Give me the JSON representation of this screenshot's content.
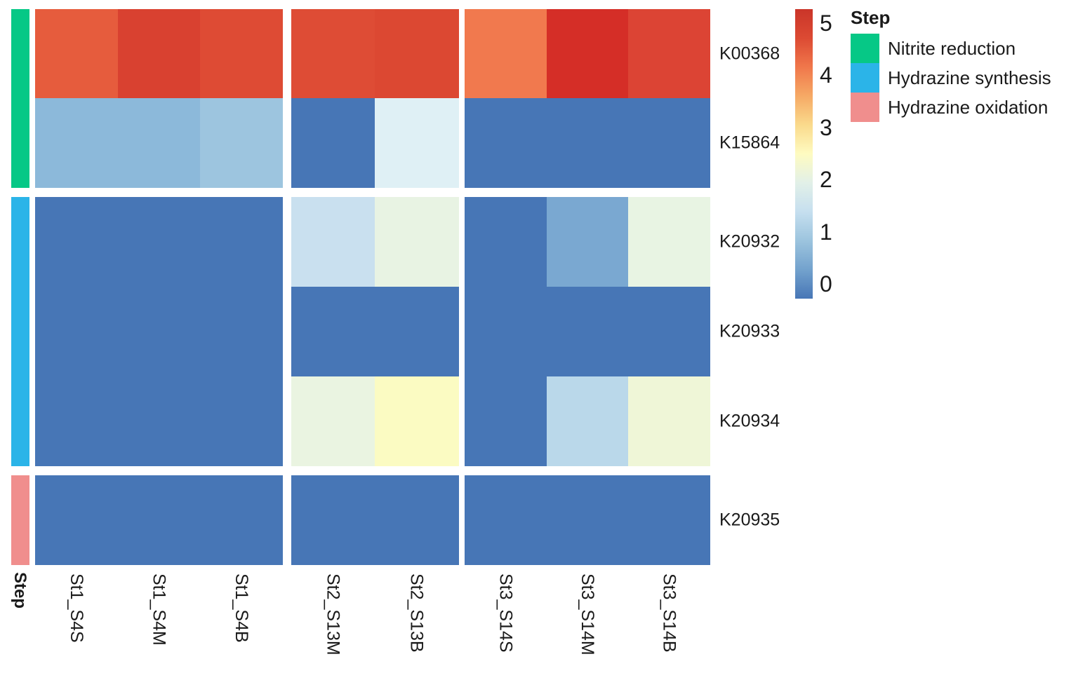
{
  "chart_data": {
    "type": "heatmap",
    "title": "",
    "rows": [
      "K00368",
      "K15864",
      "K20932",
      "K20933",
      "K20934",
      "K20935"
    ],
    "columns": [
      "St1_S4S",
      "St1_S4M",
      "St1_S4B",
      "St2_S13M",
      "St2_S13B",
      "St3_S14S",
      "St3_S14M",
      "St3_S14B"
    ],
    "column_groups": [
      {
        "name": "St1",
        "columns": [
          "St1_S4S",
          "St1_S4M",
          "St1_S4B"
        ]
      },
      {
        "name": "St2",
        "columns": [
          "St2_S13M",
          "St2_S13B"
        ]
      },
      {
        "name": "St3",
        "columns": [
          "St3_S14S",
          "St3_S14M",
          "St3_S14B"
        ]
      }
    ],
    "values": [
      [
        4.2,
        4.7,
        4.5,
        4.5,
        4.6,
        4.0,
        4.9,
        4.8
      ],
      [
        1.1,
        1.1,
        1.3,
        0,
        1.9,
        0,
        0,
        0
      ],
      [
        0,
        0,
        0,
        1.6,
        2.2,
        0,
        0.8,
        2.2
      ],
      [
        0,
        0,
        0,
        0,
        0,
        0,
        0,
        0
      ],
      [
        0,
        0,
        0,
        2.3,
        2.7,
        0,
        1.4,
        2.5
      ],
      [
        0,
        0,
        0,
        0,
        0,
        0,
        0,
        0
      ]
    ],
    "cell_colors": [
      [
        "#E65C3D",
        "#D94130",
        "#DE4B34",
        "#DE4C35",
        "#DC4832",
        "#F1794E",
        "#D52E27",
        "#DC4434"
      ],
      [
        "#8CB9DA",
        "#8CB9DA",
        "#9DC5DF",
        "#4776B6",
        "#DFF0F5",
        "#4776B6",
        "#4776B6",
        "#4776B6"
      ],
      [
        "#4776B6",
        "#4776B6",
        "#4776B6",
        "#C9E0EF",
        "#E8F3E3",
        "#4776B6",
        "#7AA8D1",
        "#E8F4E3"
      ],
      [
        "#4776B6",
        "#4776B6",
        "#4776B6",
        "#4776B6",
        "#4776B6",
        "#4776B6",
        "#4776B6",
        "#4776B6"
      ],
      [
        "#4776B6",
        "#4776B6",
        "#4776B6",
        "#EAF4E1",
        "#FBFBC2",
        "#4776B6",
        "#BAD8EA",
        "#EFF6D7"
      ],
      [
        "#4776B6",
        "#4776B6",
        "#4776B6",
        "#4776B6",
        "#4776B6",
        "#4776B6",
        "#4776B6",
        "#4776B6"
      ]
    ],
    "row_groups": [
      {
        "step": "Nitrite reduction",
        "color": "#06C886",
        "rows": [
          "K00368",
          "K15864"
        ]
      },
      {
        "step": "Hydrazine synthesis",
        "color": "#2BB4E8",
        "rows": [
          "K20932",
          "K20933",
          "K20934"
        ]
      },
      {
        "step": "Hydrazine oxidation",
        "color": "#F08E8D",
        "rows": [
          "K20935"
        ]
      }
    ],
    "annotation_axis_label": "Step",
    "colorbar": {
      "min": 0,
      "max": 5,
      "ticks": [
        5,
        4,
        3,
        2,
        1,
        0
      ],
      "gradient_top_to_bottom": [
        "#CA3529",
        "#DC4A33",
        "#F0774B",
        "#F6A965",
        "#FADA8C",
        "#FEFBC1",
        "#E2F0E8",
        "#C6DFEF",
        "#9CC4DE",
        "#73A2CD",
        "#4776B6"
      ]
    },
    "legend": {
      "title": "Step",
      "items": [
        {
          "label": "Nitrite reduction",
          "color": "#06C886"
        },
        {
          "label": "Hydrazine synthesis",
          "color": "#2BB4E8"
        },
        {
          "label": "Hydrazine oxidation",
          "color": "#F08E8D"
        }
      ]
    }
  }
}
